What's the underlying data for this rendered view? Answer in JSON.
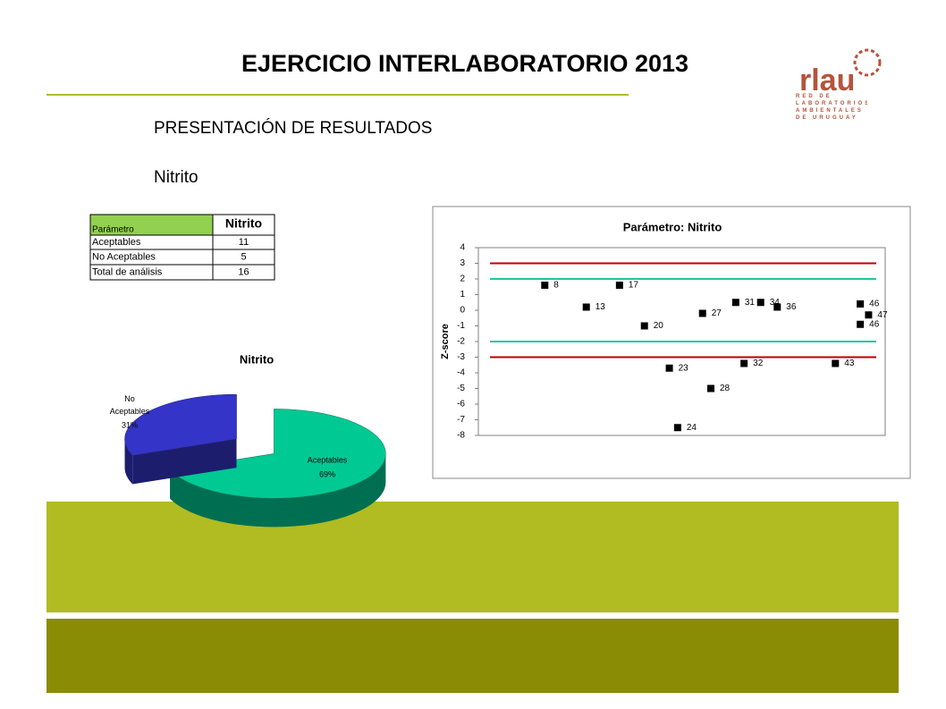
{
  "title": "EJERCICIO INTERLABORATORIO 2013",
  "subtitle": "PRESENTACIÓN DE RESULTADOS",
  "parameter": "Nitrito",
  "logo": {
    "name": "rlau",
    "text": "RED DE LABORATORIOS AMBIENTALES DE URUGUAY"
  },
  "table": {
    "header": [
      "Parámetro",
      "Nitrito"
    ],
    "rows": [
      [
        "Aceptables",
        11
      ],
      [
        "No Aceptables",
        5
      ],
      [
        "Total de análisis",
        16
      ]
    ]
  },
  "chart_data": [
    {
      "type": "pie",
      "title": "Nitrito",
      "categories": [
        "Aceptables",
        "No Aceptables"
      ],
      "values": [
        69,
        31
      ],
      "value_labels": [
        "69%",
        "31%"
      ],
      "colors": [
        "#00c994",
        "#3434c8"
      ],
      "three_d": true
    },
    {
      "type": "scatter",
      "title": "Parámetro: Nitrito",
      "ylabel": "Z-score",
      "x": [
        8,
        13,
        17,
        20,
        23,
        24,
        27,
        28,
        31,
        32,
        34,
        36,
        43,
        46,
        47,
        46
      ],
      "values": [
        1.6,
        0.2,
        1.6,
        -1.0,
        -3.7,
        -7.5,
        -0.2,
        -5.0,
        0.5,
        -3.4,
        0.5,
        0.2,
        -3.4,
        0.4,
        -0.3,
        -0.9
      ],
      "color": "#000000",
      "xlim": [
        0,
        49
      ],
      "ylim": [
        -8,
        4
      ],
      "yticks": [
        4,
        3,
        2,
        1,
        0,
        -1,
        -2,
        -3,
        -4,
        -5,
        -6,
        -7,
        -8
      ],
      "reference_lines": [
        {
          "value": 3,
          "color": "#c00000"
        },
        {
          "value": 2,
          "color": "#1ec8a0"
        },
        {
          "value": -2,
          "color": "#1ec8a0"
        },
        {
          "value": -3,
          "color": "#c00000"
        }
      ]
    }
  ]
}
